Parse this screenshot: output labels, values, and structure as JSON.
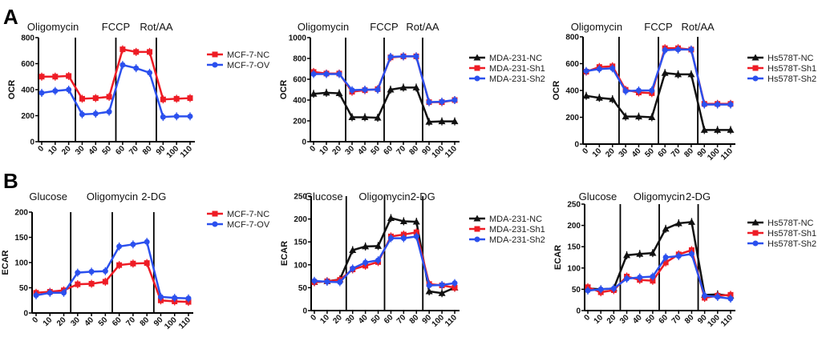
{
  "panel_labels": [
    "A",
    "B"
  ],
  "colors": {
    "NC_black": "#111111",
    "red": "#ee1c25",
    "blue": "#2b50ee"
  },
  "chart_data": [
    {
      "type": "line",
      "panel": "A",
      "ylabel": "OCR",
      "ylim": [
        0,
        800
      ],
      "yticks": [
        0,
        200,
        400,
        600,
        800
      ],
      "x": [
        0,
        10,
        20,
        30,
        40,
        50,
        60,
        70,
        80,
        90,
        100,
        110
      ],
      "treatments": [
        {
          "label": "Oligomycin",
          "x": 25
        },
        {
          "label": "FCCP",
          "x": 55
        },
        {
          "label": "Rot/AA",
          "x": 85
        }
      ],
      "legend": "right",
      "series": [
        {
          "name": "MCF-7-NC",
          "color": "#ee1c25",
          "marker": "square",
          "values": [
            500,
            500,
            505,
            330,
            335,
            345,
            710,
            690,
            690,
            325,
            330,
            335
          ]
        },
        {
          "name": "MCF-7-OV",
          "color": "#2b50ee",
          "marker": "circle",
          "values": [
            375,
            390,
            400,
            210,
            215,
            230,
            590,
            565,
            530,
            190,
            195,
            195
          ]
        }
      ]
    },
    {
      "type": "line",
      "panel": "A",
      "ylabel": "OCR",
      "ylim": [
        0,
        1000
      ],
      "yticks": [
        0,
        200,
        400,
        600,
        800,
        1000
      ],
      "x": [
        0,
        10,
        20,
        30,
        40,
        50,
        60,
        70,
        80,
        90,
        100,
        110
      ],
      "treatments": [
        {
          "label": "Oligomycin",
          "x": 25
        },
        {
          "label": "FCCP",
          "x": 55
        },
        {
          "label": "Rot/AA",
          "x": 85
        }
      ],
      "legend": "right",
      "series": [
        {
          "name": "MDA-231-NC",
          "color": "#111111",
          "marker": "triangle",
          "values": [
            460,
            470,
            465,
            235,
            235,
            230,
            500,
            520,
            520,
            190,
            195,
            195
          ]
        },
        {
          "name": "MDA-231-Sh1",
          "color": "#ee1c25",
          "marker": "square",
          "values": [
            670,
            655,
            655,
            480,
            495,
            505,
            810,
            820,
            820,
            380,
            380,
            400
          ]
        },
        {
          "name": "MDA-231-Sh2",
          "color": "#2b50ee",
          "marker": "circle",
          "values": [
            650,
            650,
            650,
            495,
            500,
            500,
            815,
            820,
            820,
            380,
            385,
            400
          ]
        }
      ]
    },
    {
      "type": "line",
      "panel": "A",
      "ylabel": "OCR",
      "ylim": [
        0,
        800
      ],
      "yticks": [
        0,
        200,
        400,
        600,
        800
      ],
      "x": [
        0,
        10,
        20,
        30,
        40,
        50,
        60,
        70,
        80,
        90,
        100,
        110
      ],
      "treatments": [
        {
          "label": "Oligomycin",
          "x": 25
        },
        {
          "label": "FCCP",
          "x": 55
        },
        {
          "label": "Rot/AA",
          "x": 85
        }
      ],
      "legend": "right",
      "series": [
        {
          "name": "Hs578T-NC",
          "color": "#111111",
          "marker": "triangle",
          "values": [
            360,
            345,
            335,
            205,
            205,
            200,
            530,
            520,
            520,
            105,
            105,
            105
          ]
        },
        {
          "name": "Hs578T-Sh1",
          "color": "#ee1c25",
          "marker": "square",
          "values": [
            540,
            575,
            580,
            405,
            385,
            380,
            715,
            715,
            705,
            300,
            300,
            300
          ]
        },
        {
          "name": "Hs578T-Sh2",
          "color": "#2b50ee",
          "marker": "circle",
          "values": [
            545,
            560,
            565,
            395,
            400,
            400,
            700,
            705,
            705,
            295,
            295,
            295
          ]
        }
      ]
    },
    {
      "type": "line",
      "panel": "B",
      "ylabel": "ECAR",
      "ylim": [
        0,
        200
      ],
      "yticks": [
        0,
        50,
        100,
        150,
        200
      ],
      "x": [
        0,
        10,
        20,
        30,
        40,
        50,
        60,
        70,
        80,
        90,
        100,
        110
      ],
      "treatments": [
        {
          "label": "Glucose",
          "x": 25
        },
        {
          "label": "Oligomycin",
          "x": 55
        },
        {
          "label": "2-DG",
          "x": 85
        }
      ],
      "legend": "right",
      "series": [
        {
          "name": "MCF-7-NC",
          "color": "#ee1c25",
          "marker": "square",
          "values": [
            40,
            42,
            45,
            57,
            58,
            62,
            95,
            98,
            99,
            25,
            23,
            22
          ]
        },
        {
          "name": "MCF-7-OV",
          "color": "#2b50ee",
          "marker": "circle",
          "values": [
            35,
            40,
            40,
            80,
            82,
            83,
            132,
            136,
            141,
            32,
            30,
            29
          ]
        }
      ]
    },
    {
      "type": "line",
      "panel": "B",
      "ylabel": "ECAR",
      "ylim": [
        0,
        250
      ],
      "yticks": [
        0,
        50,
        100,
        150,
        200,
        250
      ],
      "x": [
        0,
        10,
        20,
        30,
        40,
        50,
        60,
        70,
        80,
        90,
        100,
        110
      ],
      "treatments": [
        {
          "label": "Glucose",
          "x": 25
        },
        {
          "label": "Oligomycin",
          "x": 55
        },
        {
          "label": "2-DG",
          "x": 85
        }
      ],
      "legend": "right",
      "series": [
        {
          "name": "MDA-231-NC",
          "color": "#111111",
          "marker": "triangle",
          "values": [
            62,
            64,
            68,
            132,
            140,
            141,
            202,
            195,
            194,
            42,
            38,
            50
          ]
        },
        {
          "name": "MDA-231-Sh1",
          "color": "#ee1c25",
          "marker": "square",
          "values": [
            62,
            64,
            67,
            90,
            98,
            106,
            162,
            166,
            171,
            58,
            55,
            50
          ]
        },
        {
          "name": "MDA-231-Sh2",
          "color": "#2b50ee",
          "marker": "circle",
          "values": [
            65,
            63,
            62,
            92,
            105,
            110,
            158,
            158,
            162,
            55,
            56,
            60
          ]
        }
      ]
    },
    {
      "type": "line",
      "panel": "B",
      "ylabel": "ECAR",
      "ylim": [
        0,
        250
      ],
      "yticks": [
        0,
        50,
        100,
        150,
        200,
        250
      ],
      "x": [
        0,
        10,
        20,
        30,
        40,
        50,
        60,
        70,
        80,
        90,
        100,
        110
      ],
      "treatments": [
        {
          "label": "Glucose",
          "x": 25
        },
        {
          "label": "Oligomycin",
          "x": 55
        },
        {
          "label": "2-DG",
          "x": 85
        }
      ],
      "legend": "right",
      "series": [
        {
          "name": "Hs578T-NC",
          "color": "#111111",
          "marker": "triangle",
          "values": [
            52,
            50,
            52,
            130,
            133,
            135,
            192,
            205,
            208,
            37,
            38,
            35
          ]
        },
        {
          "name": "Hs578T-Sh1",
          "color": "#ee1c25",
          "marker": "square",
          "values": [
            55,
            43,
            48,
            80,
            72,
            70,
            113,
            132,
            142,
            30,
            35,
            37
          ]
        },
        {
          "name": "Hs578T-Sh2",
          "color": "#2b50ee",
          "marker": "circle",
          "values": [
            47,
            50,
            52,
            75,
            78,
            80,
            125,
            128,
            133,
            35,
            32,
            28
          ]
        }
      ]
    }
  ]
}
